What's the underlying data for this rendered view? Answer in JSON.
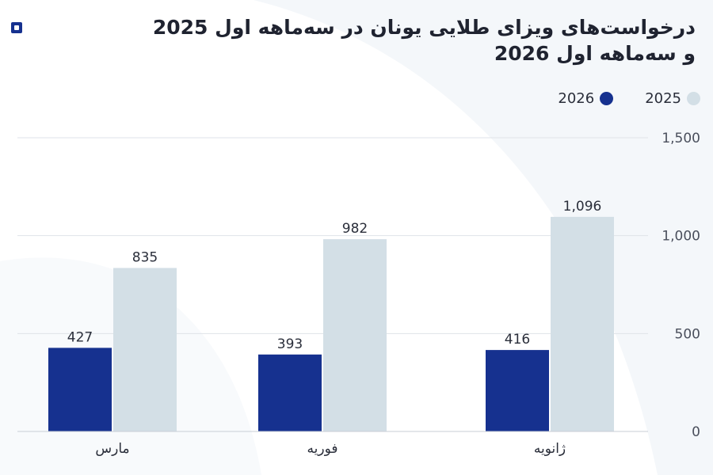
{
  "title": "درخواست‌های ویزای طلایی یونان در سه‌ماهه اول 2025 و سه‌ماهه اول 2026",
  "colors": {
    "2026": "#16318f",
    "2025": "#d3dfe6",
    "grid": "#dfe3e8",
    "text": "#2a2e3a"
  },
  "chart_data": {
    "type": "bar",
    "title": "درخواست‌های ویزای طلایی یونان در سه‌ماهه اول 2025 و سه‌ماهه اول 2026",
    "categories": [
      "مارس",
      "فوریه",
      "ژانویه"
    ],
    "series": [
      {
        "name": "2026",
        "values": [
          427,
          393,
          416
        ],
        "labels": [
          "427",
          "393",
          "416"
        ]
      },
      {
        "name": "2025",
        "values": [
          835,
          982,
          1096
        ],
        "labels": [
          "835",
          "982",
          "1,096"
        ]
      }
    ],
    "yticks": [
      0,
      500,
      1000,
      1500
    ],
    "ytick_labels": [
      "0",
      "500",
      "1,000",
      "1,500"
    ],
    "ylim": [
      0,
      1500
    ],
    "yaxis_side": "right",
    "legend_position": "top-right",
    "grid": true,
    "xlabel": "",
    "ylabel": ""
  }
}
